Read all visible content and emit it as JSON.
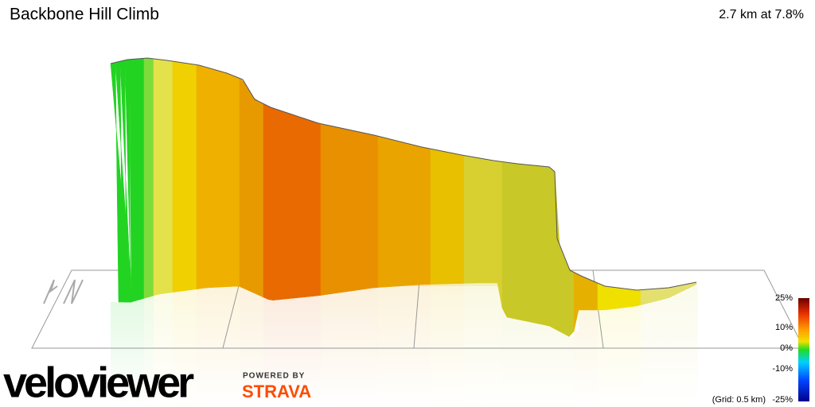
{
  "header": {
    "title": "Backbone Hill Climb",
    "stats": "2.7 km at 7.8%"
  },
  "legend": {
    "labels": [
      "25%",
      "10%",
      "0%",
      "-10%",
      "-25%"
    ],
    "note": "(Grid: 0.5 km)"
  },
  "branding": {
    "logo": "veloviewer",
    "powered_by": "POWERED BY",
    "partner": "STRAVA"
  }
}
